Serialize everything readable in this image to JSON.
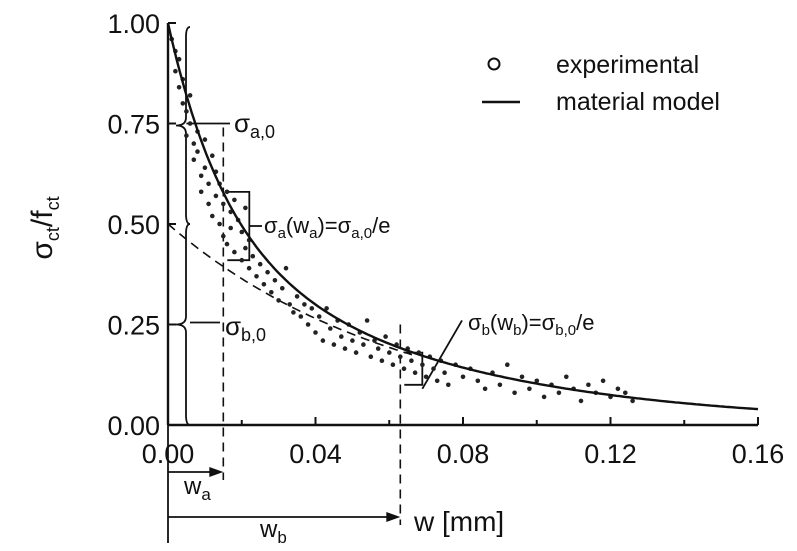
{
  "chart_data": {
    "type": "scatter",
    "xlabel": "w [mm]",
    "ylabel_main": "σ",
    "ylabel_sub": "ct",
    "ylabel_div": "/f",
    "ylabel_div_sub": "ct",
    "xlim": [
      0,
      0.16
    ],
    "ylim": [
      0,
      1.0
    ],
    "x_ticks": [
      "0.00",
      "0.04",
      "0.08",
      "0.12",
      "0.16"
    ],
    "x_tick_values": [
      0,
      0.04,
      0.08,
      0.12,
      0.16
    ],
    "y_ticks": [
      "0.00",
      "0.25",
      "0.50",
      "0.75",
      "1.00"
    ],
    "y_tick_values": [
      0,
      0.25,
      0.5,
      0.75,
      1.0
    ],
    "legend": {
      "placement": "top-right",
      "entries": [
        {
          "symbol": "o",
          "label": "experimental"
        },
        {
          "symbol": "—",
          "label": "material model"
        }
      ]
    },
    "model_params": {
      "sigma_a0": 0.5,
      "w_a": 0.015,
      "sigma_b0": 0.5,
      "w_b": 0.063
    },
    "annotations": {
      "sigma_a0": {
        "main": "σ",
        "sub": "a,0"
      },
      "sigma_b0": {
        "main": "σ",
        "sub": "b,0"
      },
      "eq_a": {
        "p1": "σ",
        "s1": "a",
        "p2": "(w",
        "s2": "a",
        "p3": ")=σ",
        "s3": "a,0",
        "p4": "/e"
      },
      "eq_b": {
        "p1": "σ",
        "s1": "b",
        "p2": "(w",
        "s2": "b",
        "p3": ")=σ",
        "s3": "b,0",
        "p4": "/e"
      },
      "wa": {
        "main": "w",
        "sub": "a"
      },
      "wb": {
        "main": "w",
        "sub": "b"
      }
    },
    "experimental": [
      [
        0.001,
        0.96
      ],
      [
        0.002,
        0.93
      ],
      [
        0.002,
        0.88
      ],
      [
        0.003,
        0.91
      ],
      [
        0.003,
        0.84
      ],
      [
        0.004,
        0.8
      ],
      [
        0.004,
        0.86
      ],
      [
        0.005,
        0.78
      ],
      [
        0.005,
        0.72
      ],
      [
        0.006,
        0.82
      ],
      [
        0.006,
        0.75
      ],
      [
        0.007,
        0.7
      ],
      [
        0.007,
        0.66
      ],
      [
        0.008,
        0.73
      ],
      [
        0.008,
        0.68
      ],
      [
        0.009,
        0.62
      ],
      [
        0.009,
        0.58
      ],
      [
        0.01,
        0.71
      ],
      [
        0.01,
        0.64
      ],
      [
        0.011,
        0.6
      ],
      [
        0.011,
        0.55
      ],
      [
        0.012,
        0.67
      ],
      [
        0.012,
        0.52
      ],
      [
        0.013,
        0.63
      ],
      [
        0.013,
        0.57
      ],
      [
        0.014,
        0.6
      ],
      [
        0.014,
        0.5
      ],
      [
        0.015,
        0.55
      ],
      [
        0.015,
        0.47
      ],
      [
        0.016,
        0.58
      ],
      [
        0.016,
        0.45
      ],
      [
        0.017,
        0.53
      ],
      [
        0.017,
        0.49
      ],
      [
        0.018,
        0.56
      ],
      [
        0.018,
        0.43
      ],
      [
        0.019,
        0.51
      ],
      [
        0.02,
        0.48
      ],
      [
        0.02,
        0.41
      ],
      [
        0.021,
        0.54
      ],
      [
        0.021,
        0.44
      ],
      [
        0.022,
        0.46
      ],
      [
        0.022,
        0.39
      ],
      [
        0.023,
        0.42
      ],
      [
        0.024,
        0.37
      ],
      [
        0.025,
        0.4
      ],
      [
        0.026,
        0.35
      ],
      [
        0.027,
        0.38
      ],
      [
        0.028,
        0.33
      ],
      [
        0.029,
        0.36
      ],
      [
        0.03,
        0.31
      ],
      [
        0.031,
        0.34
      ],
      [
        0.032,
        0.39
      ],
      [
        0.033,
        0.3
      ],
      [
        0.034,
        0.28
      ],
      [
        0.035,
        0.32
      ],
      [
        0.036,
        0.27
      ],
      [
        0.037,
        0.3
      ],
      [
        0.038,
        0.25
      ],
      [
        0.039,
        0.29
      ],
      [
        0.04,
        0.23
      ],
      [
        0.041,
        0.27
      ],
      [
        0.042,
        0.21
      ],
      [
        0.043,
        0.29
      ],
      [
        0.044,
        0.24
      ],
      [
        0.045,
        0.2
      ],
      [
        0.046,
        0.26
      ],
      [
        0.047,
        0.22
      ],
      [
        0.048,
        0.19
      ],
      [
        0.049,
        0.25
      ],
      [
        0.05,
        0.21
      ],
      [
        0.051,
        0.18
      ],
      [
        0.052,
        0.23
      ],
      [
        0.053,
        0.2
      ],
      [
        0.054,
        0.26
      ],
      [
        0.055,
        0.17
      ],
      [
        0.056,
        0.21
      ],
      [
        0.057,
        0.19
      ],
      [
        0.058,
        0.16
      ],
      [
        0.059,
        0.22
      ],
      [
        0.06,
        0.18
      ],
      [
        0.061,
        0.15
      ],
      [
        0.062,
        0.2
      ],
      [
        0.063,
        0.17
      ],
      [
        0.064,
        0.14
      ],
      [
        0.065,
        0.19
      ],
      [
        0.066,
        0.16
      ],
      [
        0.067,
        0.13
      ],
      [
        0.068,
        0.18
      ],
      [
        0.069,
        0.15
      ],
      [
        0.07,
        0.12
      ],
      [
        0.071,
        0.17
      ],
      [
        0.072,
        0.14
      ],
      [
        0.073,
        0.11
      ],
      [
        0.074,
        0.16
      ],
      [
        0.075,
        0.13
      ],
      [
        0.076,
        0.1
      ],
      [
        0.078,
        0.15
      ],
      [
        0.08,
        0.12
      ],
      [
        0.082,
        0.14
      ],
      [
        0.084,
        0.11
      ],
      [
        0.086,
        0.09
      ],
      [
        0.088,
        0.13
      ],
      [
        0.09,
        0.1
      ],
      [
        0.092,
        0.15
      ],
      [
        0.094,
        0.08
      ],
      [
        0.096,
        0.12
      ],
      [
        0.098,
        0.09
      ],
      [
        0.1,
        0.11
      ],
      [
        0.102,
        0.07
      ],
      [
        0.104,
        0.1
      ],
      [
        0.106,
        0.08
      ],
      [
        0.108,
        0.12
      ],
      [
        0.11,
        0.09
      ],
      [
        0.112,
        0.06
      ],
      [
        0.114,
        0.1
      ],
      [
        0.116,
        0.08
      ],
      [
        0.118,
        0.11
      ],
      [
        0.12,
        0.07
      ],
      [
        0.122,
        0.09
      ],
      [
        0.124,
        0.08
      ],
      [
        0.126,
        0.06
      ]
    ]
  }
}
